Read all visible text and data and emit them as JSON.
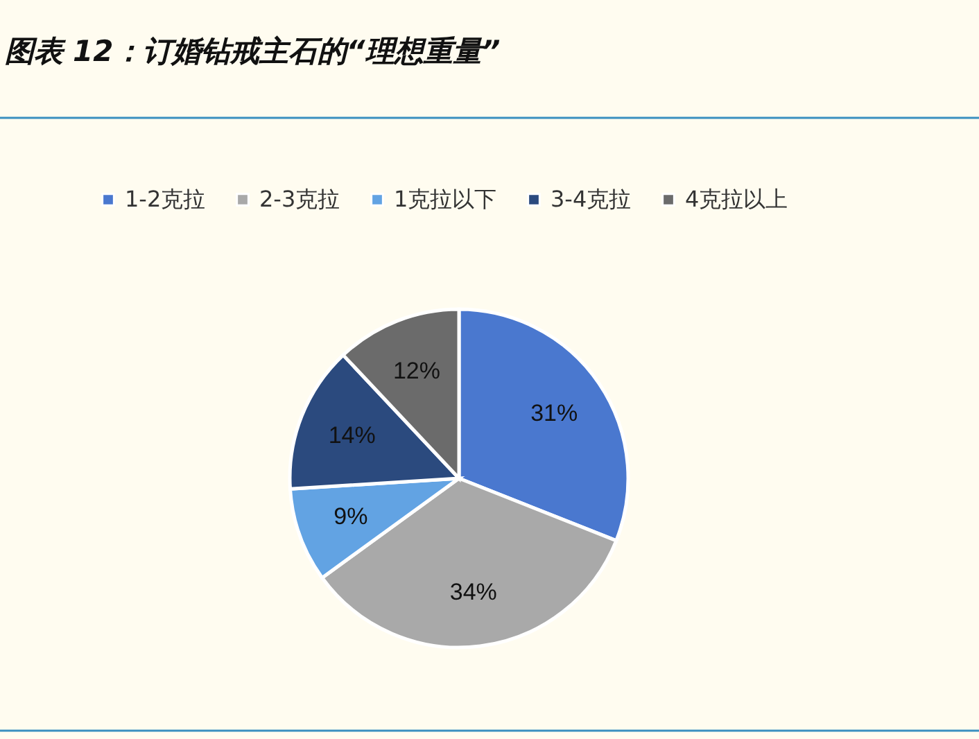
{
  "chart_data": {
    "type": "pie",
    "title": "图表 12：订婚钻戒主石的“理想重量”",
    "categories": [
      "1-2克拉",
      "2-3克拉",
      "1克拉以下",
      "3-4克拉",
      "4克拉以上"
    ],
    "values": [
      31,
      34,
      9,
      14,
      12
    ],
    "colors": [
      "#4a78cf",
      "#a9a9a9",
      "#62a3e3",
      "#2b4a7e",
      "#6b6b6b"
    ],
    "value_labels": [
      "31%",
      "34%",
      "9%",
      "14%",
      "12%"
    ],
    "legend": "top"
  }
}
